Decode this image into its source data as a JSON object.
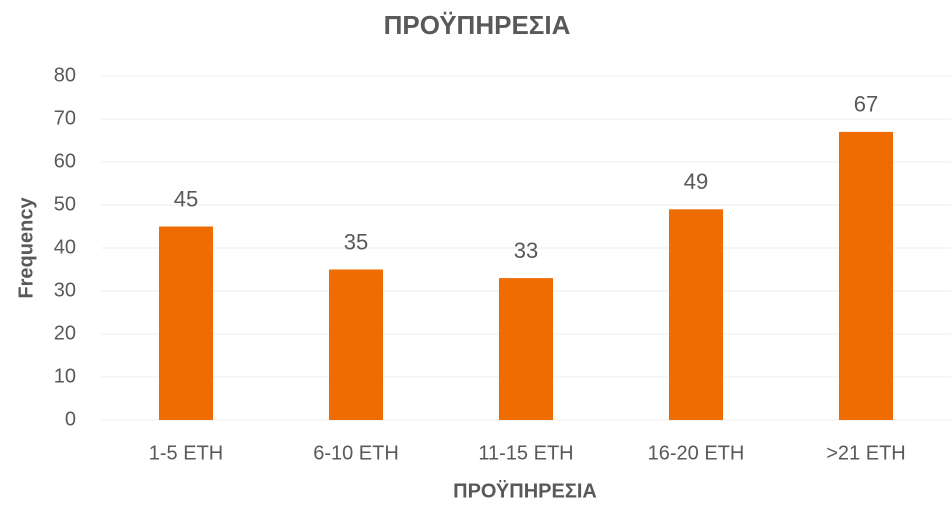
{
  "chart_data": {
    "type": "bar",
    "title": "ΠΡΟΫΠΗΡΕΣΙΑ",
    "x_label": "ΠΡΟΫΠΗΡΕΣΙΑ",
    "y_label": "Frequency",
    "categories": [
      "1-5 ΕΤΗ",
      "6-10 ΕΤΗ",
      "11-15 ΕΤΗ",
      "16-20 ΕΤΗ",
      ">21 ΕΤΗ"
    ],
    "values": [
      45,
      35,
      33,
      49,
      67
    ],
    "color": "#ee6c00",
    "ylim": [
      0,
      80
    ],
    "yticks": [
      0,
      10,
      20,
      30,
      40,
      50,
      60,
      70,
      80
    ],
    "grid": true
  }
}
